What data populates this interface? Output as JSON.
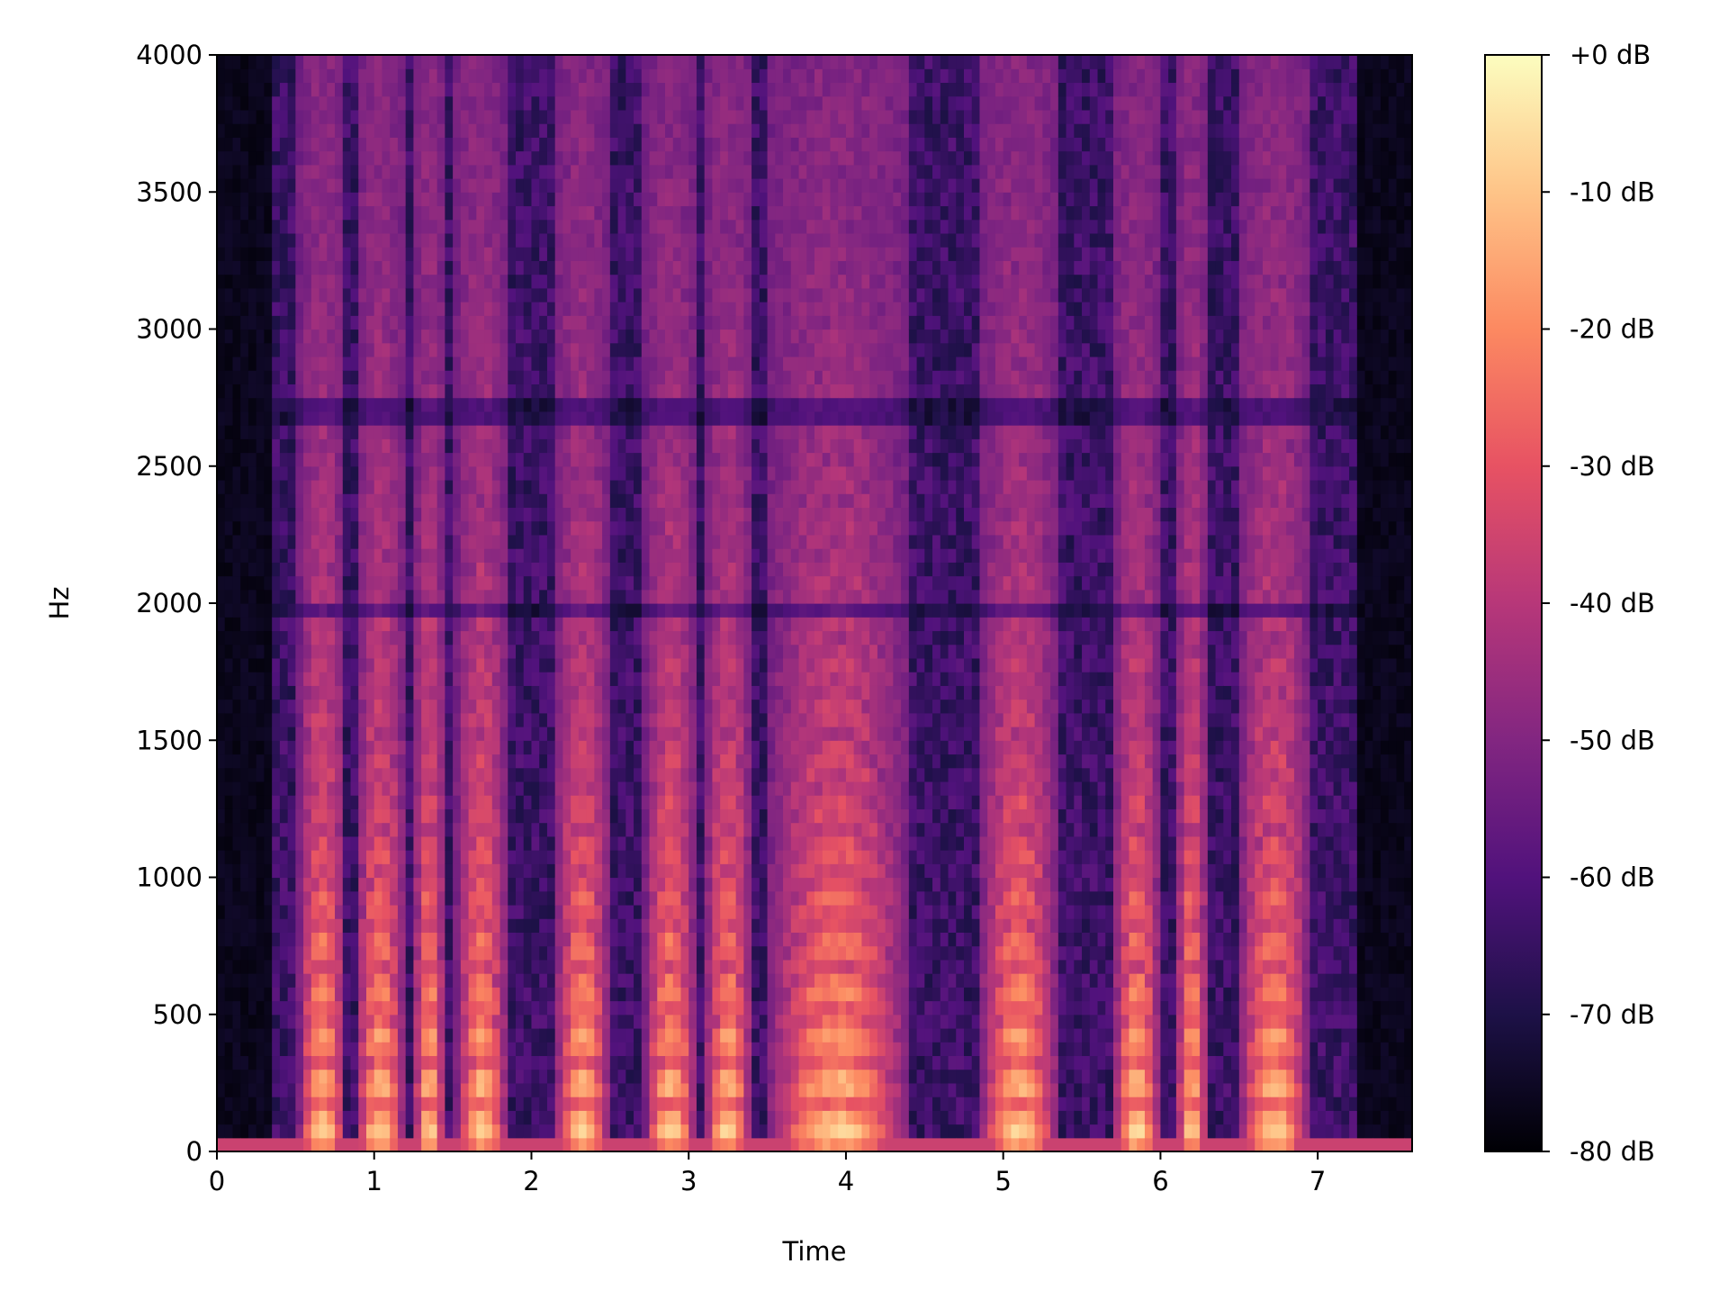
{
  "chart_data": {
    "type": "heatmap",
    "subtype": "spectrogram",
    "title": "",
    "xlabel": "Time",
    "ylabel": "Hz",
    "xlim": [
      0,
      7.6
    ],
    "ylim": [
      0,
      4000
    ],
    "x_ticks": [
      0,
      1,
      2,
      3,
      4,
      5,
      6,
      7
    ],
    "x_tick_labels": [
      "0",
      "1",
      "2",
      "3",
      "4",
      "5",
      "6",
      "7"
    ],
    "y_ticks": [
      0,
      500,
      1000,
      1500,
      2000,
      2500,
      3000,
      3500,
      4000
    ],
    "y_tick_labels": [
      "0",
      "500",
      "1000",
      "1500",
      "2000",
      "2500",
      "3000",
      "3500",
      "4000"
    ],
    "colorbar": {
      "colormap": "magma",
      "range_db": [
        -80,
        0
      ],
      "ticks": [
        0,
        -10,
        -20,
        -30,
        -40,
        -50,
        -60,
        -70,
        -80
      ],
      "tick_labels": [
        "+0 dB",
        "-10 dB",
        "-20 dB",
        "-30 dB",
        "-40 dB",
        "-50 dB",
        "-60 dB",
        "-70 dB",
        "-80 dB"
      ],
      "colors": [
        "#000004",
        "#1d1147",
        "#51127c",
        "#822681",
        "#b73779",
        "#e75263",
        "#fc8961",
        "#fec488",
        "#fcfdbf"
      ]
    },
    "voiced_segments_s": [
      [
        0.52,
        0.82
      ],
      [
        0.88,
        1.2
      ],
      [
        1.25,
        1.45
      ],
      [
        1.52,
        1.85
      ],
      [
        2.15,
        2.5
      ],
      [
        2.72,
        3.05
      ],
      [
        3.1,
        3.4
      ],
      [
        3.5,
        4.4
      ],
      [
        4.85,
        5.35
      ],
      [
        5.7,
        6.0
      ],
      [
        6.1,
        6.3
      ],
      [
        6.5,
        6.95
      ]
    ],
    "noise_bands_hz": [
      2700,
      1980
    ],
    "legend": "none",
    "grid": false
  }
}
